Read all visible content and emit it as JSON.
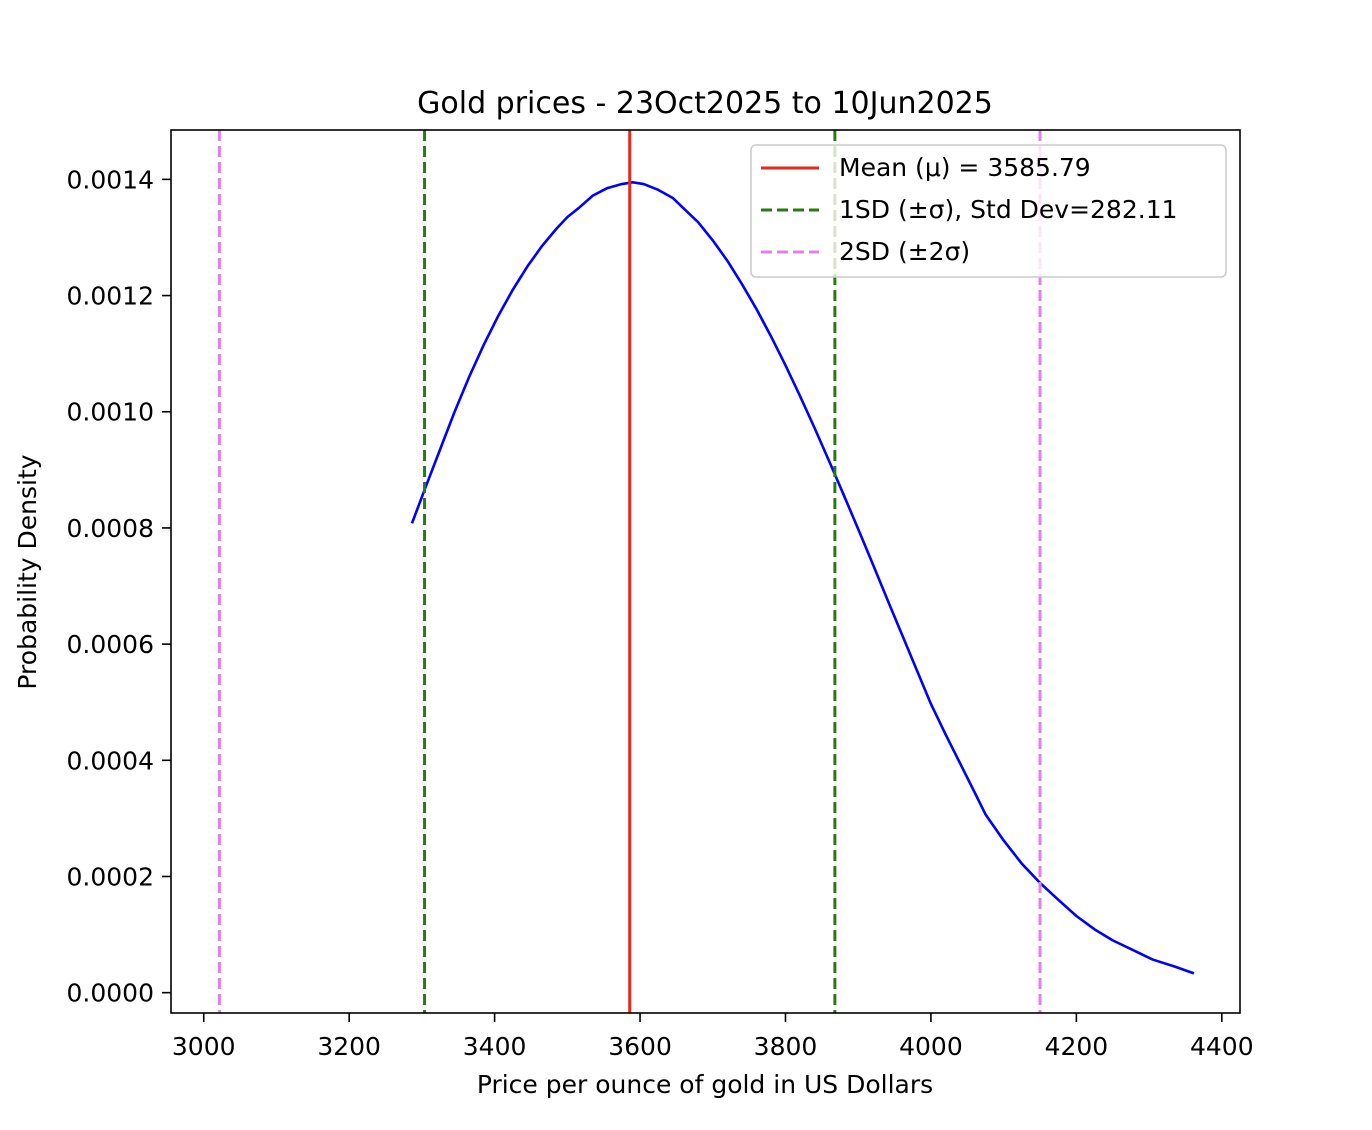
{
  "chart_data": {
    "type": "line",
    "title": "Gold prices - 23Oct2025 to 10Jun2025",
    "xlabel": "Price per ounce of gold in US Dollars",
    "ylabel": "Probability Density",
    "xlim": [
      2955,
      4425
    ],
    "ylim": [
      -3.5e-05,
      0.001485
    ],
    "xticks": [
      3000,
      3200,
      3400,
      3600,
      3800,
      4000,
      4200,
      4400
    ],
    "yticks": [
      0.0,
      0.0002,
      0.0004,
      0.0006,
      0.0008,
      0.001,
      0.0012,
      0.0014
    ],
    "ytick_labels": [
      "0.0000",
      "0.0002",
      "0.0004",
      "0.0006",
      "0.0008",
      "0.0010",
      "0.0012",
      "0.0014"
    ],
    "grid": false,
    "legend_position": "upper-right",
    "series": [
      {
        "name": "density",
        "color": "#0000ff",
        "x": [
          3287,
          3305,
          3325,
          3345,
          3365,
          3385,
          3405,
          3425,
          3445,
          3465,
          3485,
          3500,
          3515,
          3535,
          3555,
          3575,
          3590,
          3605,
          3625,
          3645,
          3660,
          3680,
          3700,
          3720,
          3740,
          3760,
          3780,
          3800,
          3820,
          3840,
          3860,
          3880,
          3900,
          3920,
          3940,
          3960,
          3980,
          4000,
          4020,
          4040,
          4060,
          4075,
          4100,
          4125,
          4150,
          4175,
          4200,
          4225,
          4250,
          4280,
          4305,
          4335,
          4360
        ],
        "y": [
          0.00081,
          0.00087,
          0.000935,
          0.001,
          0.00106,
          0.001115,
          0.001165,
          0.00121,
          0.00125,
          0.001285,
          0.001315,
          0.001335,
          0.00135,
          0.001372,
          0.001385,
          0.001392,
          0.001395,
          0.001392,
          0.001382,
          0.001368,
          0.00135,
          0.001326,
          0.001295,
          0.00126,
          0.00122,
          0.001177,
          0.00113,
          0.00108,
          0.001027,
          0.000972,
          0.000915,
          0.000857,
          0.000798,
          0.000738,
          0.000677,
          0.000617,
          0.000557,
          0.000497,
          0.000445,
          0.000395,
          0.000345,
          0.000307,
          0.000262,
          0.000222,
          0.000189,
          0.00016,
          0.000132,
          0.000109,
          9e-05,
          7.2e-05,
          5.7e-05,
          4.5e-05,
          3.4e-05
        ]
      }
    ],
    "vlines": [
      {
        "key": "mean",
        "x": 3585.79,
        "color": "#e8291c",
        "style": "solid"
      },
      {
        "key": "sd1-low",
        "x": 3303.68,
        "color": "#2a7a12",
        "style": "dashed"
      },
      {
        "key": "sd1-high",
        "x": 3867.9,
        "color": "#2a7a12",
        "style": "dashed"
      },
      {
        "key": "sd2-low",
        "x": 3021.57,
        "color": "#e080e8",
        "style": "dashed"
      },
      {
        "key": "sd2-high",
        "x": 4150.01,
        "color": "#e080e8",
        "style": "dashed"
      }
    ],
    "legend": [
      {
        "label": "Mean (μ) = 3585.79",
        "color": "#e8291c",
        "style": "solid"
      },
      {
        "label": "1SD (±σ), Std Dev=282.11",
        "color": "#2a7a12",
        "style": "dashed"
      },
      {
        "label": "2SD (±2σ)",
        "color": "#e080e8",
        "style": "dashed"
      }
    ]
  }
}
